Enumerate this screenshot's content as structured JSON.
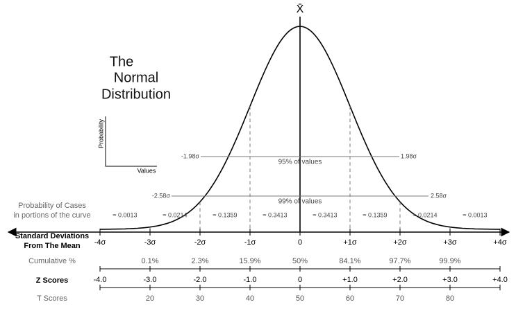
{
  "mean_symbol": "X̄",
  "title": [
    "The",
    "Normal",
    "Distribution"
  ],
  "axes_icon": {
    "y_label": "Probability",
    "x_label": "Values"
  },
  "interval_95": {
    "left": "-1.98σ",
    "right": "1.98σ",
    "label": "95% of values"
  },
  "interval_99": {
    "left": "-2.58σ",
    "right": "2.58σ",
    "label": "99% of values"
  },
  "area_row": {
    "label": [
      "Probability of Cases",
      "in portions of the curve"
    ],
    "values": [
      "≈ 0.0013",
      "≈ 0.0214",
      "≈ 0.1359",
      "≈ 0.3413",
      "≈ 0.3413",
      "≈ 0.1359",
      "≈ 0.0214",
      "≈ 0.0013"
    ]
  },
  "sd_row": {
    "label": [
      "Standard Deviations",
      "From The Mean"
    ],
    "values": [
      "-4σ",
      "-3σ",
      "-2σ",
      "-1σ",
      "0",
      "+1σ",
      "+2σ",
      "+3σ",
      "+4σ"
    ]
  },
  "cumulative_row": {
    "label": "Cumulative %",
    "values": [
      "0.1%",
      "2.3%",
      "15.9%",
      "50%",
      "84.1%",
      "97.7%",
      "99.9%"
    ]
  },
  "z_row": {
    "label": "Z Scores",
    "values": [
      "-4.0",
      "-3.0",
      "-2.0",
      "-1.0",
      "0",
      "+1.0",
      "+2.0",
      "+3.0",
      "+4.0"
    ]
  },
  "t_row": {
    "label": "T Scores",
    "values": [
      "20",
      "30",
      "40",
      "50",
      "60",
      "70",
      "80"
    ]
  }
}
